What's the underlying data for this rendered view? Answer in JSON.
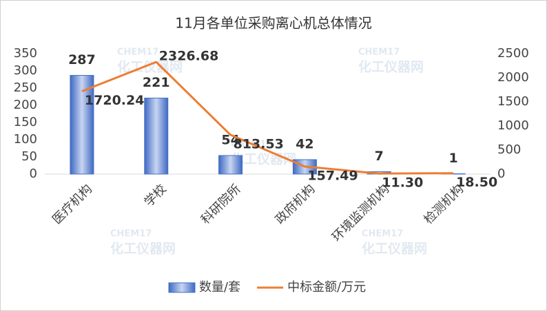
{
  "chart_data": {
    "type": "bar",
    "title": "11月各单位采购离心机总体情况",
    "categories": [
      "医疗机构",
      "学校",
      "科研院所",
      "政府机构",
      "环境监测机构",
      "检测机构"
    ],
    "series": [
      {
        "name": "数量/套",
        "type": "bar",
        "color": "#4472c4",
        "values": [
          287,
          221,
          54,
          42,
          7,
          1
        ]
      },
      {
        "name": "中标金额/万元",
        "type": "line",
        "axis": "y2",
        "color": "#ed7d31",
        "values": [
          1720.24,
          2326.68,
          813.53,
          157.49,
          11.3,
          18.5
        ],
        "value_labels": [
          "1720.24",
          "2326.68",
          "813.53",
          "157.49",
          "11.30",
          "18.50"
        ]
      }
    ],
    "ylim": [
      0,
      350
    ],
    "yticks": [
      0,
      50,
      100,
      150,
      200,
      250,
      300,
      350
    ],
    "y2lim": [
      0,
      2500
    ],
    "y2ticks": [
      0,
      500,
      1000,
      1500,
      2000,
      2500
    ],
    "grid": false,
    "legend": "bottom"
  },
  "watermark": {
    "brand": "CHEM17",
    "text": "化工仪器网"
  }
}
